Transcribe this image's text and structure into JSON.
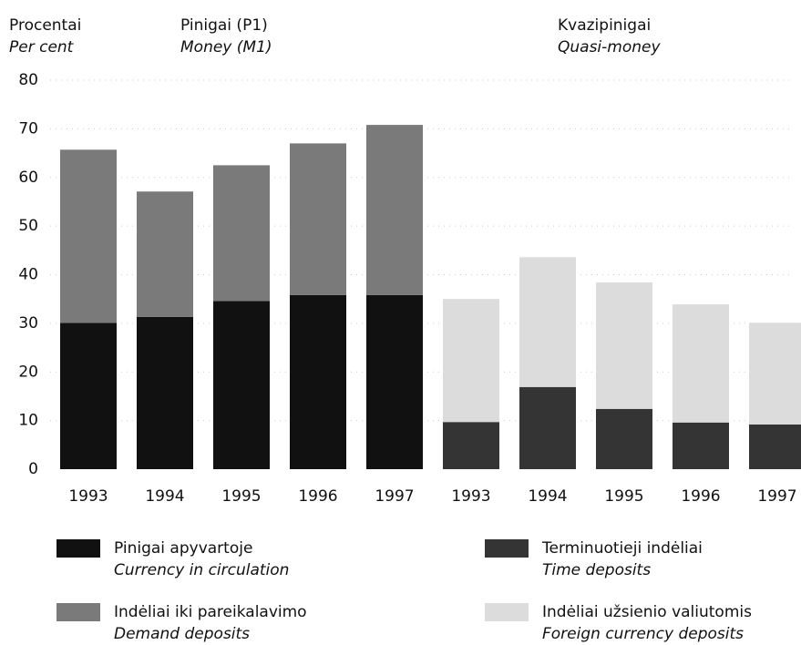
{
  "chart_data": {
    "type": "stacked_bar",
    "ylabel": "Procentai",
    "ylabel_en": "Per cent",
    "groups": [
      {
        "name": "Pinigai (P1)",
        "name_en": "Money (M1)"
      },
      {
        "name": "Kvazipinigai",
        "name_en": "Quasi-money"
      }
    ],
    "categories": [
      "1993",
      "1994",
      "1995",
      "1996",
      "1997",
      "1993",
      "1994",
      "1995",
      "1996",
      "1997"
    ],
    "series": [
      {
        "name": "Pinigai apyvartoje",
        "name_en": "Currency in circulation",
        "color": "#111111",
        "values": [
          30.1,
          31.3,
          34.6,
          35.8,
          35.8,
          null,
          null,
          null,
          null,
          null
        ]
      },
      {
        "name": "Indėliai iki pareikalavimo",
        "name_en": "Demand deposits",
        "color": "#7a7a7a",
        "values": [
          35.6,
          25.8,
          27.9,
          31.2,
          35.0,
          null,
          null,
          null,
          null,
          null
        ]
      },
      {
        "name": "Terminuotieji indėliai",
        "name_en": "Time deposits",
        "color": "#343434",
        "values": [
          null,
          null,
          null,
          null,
          null,
          9.7,
          16.9,
          12.4,
          9.6,
          9.2
        ]
      },
      {
        "name": "Indėliai užsienio valiutomis",
        "name_en": "Foreign currency deposits",
        "color": "#dcdcdc",
        "values": [
          null,
          null,
          null,
          null,
          null,
          25.3,
          26.7,
          26.0,
          24.3,
          20.9
        ]
      }
    ],
    "ylim": [
      0,
      80
    ],
    "yticks": [
      0,
      10,
      20,
      30,
      40,
      50,
      60,
      70,
      80
    ],
    "grid": true
  }
}
